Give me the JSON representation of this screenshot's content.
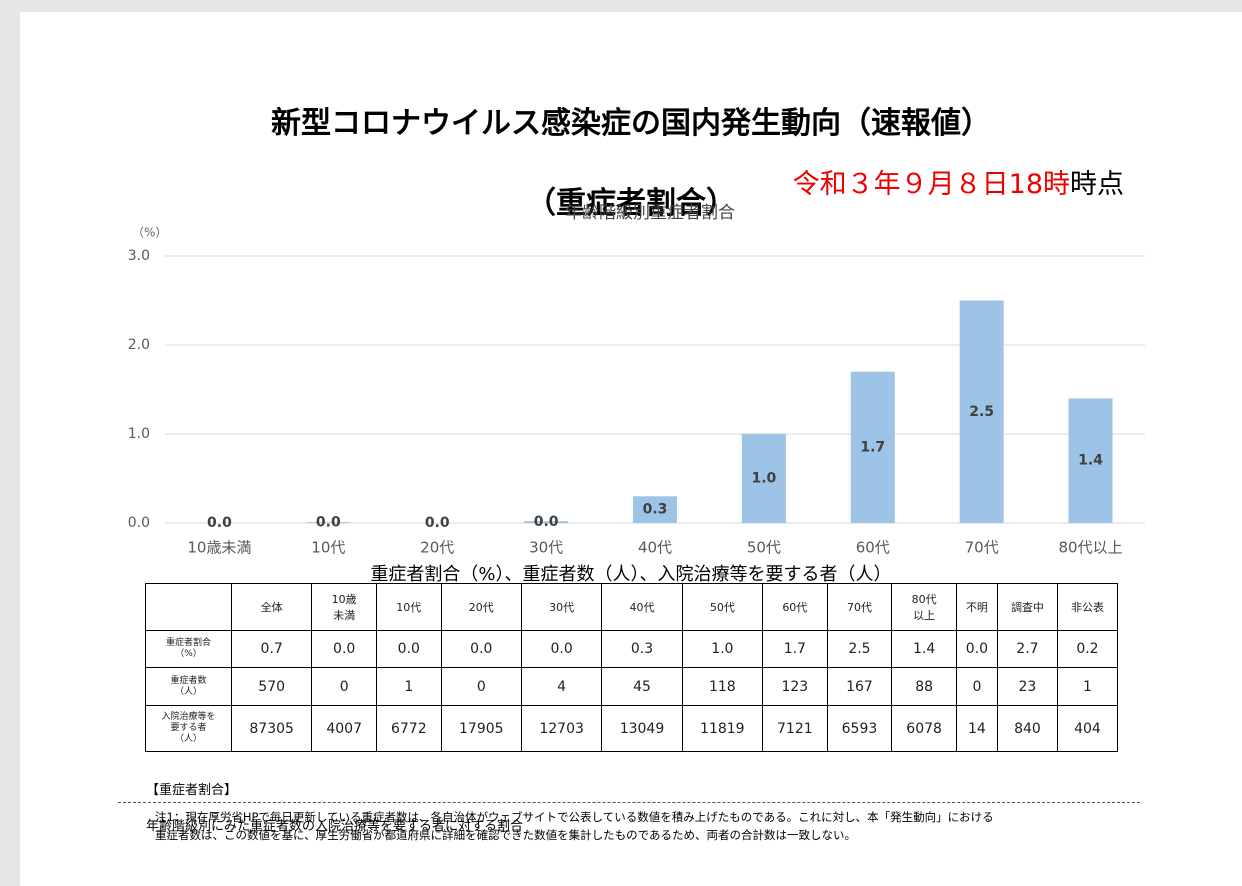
{
  "header": {
    "title_lines": [
      "新型コロナウイルス感染症の国内発生動向（速報値）",
      "（重症者割合）"
    ],
    "date": "令和３年９月８日18時",
    "date_suffix": "時点"
  },
  "chart_data": {
    "type": "bar",
    "title": "年齢階級別重症者割合",
    "y_unit": "（%）",
    "categories": [
      "10歳未満",
      "10代",
      "20代",
      "30代",
      "40代",
      "50代",
      "60代",
      "70代",
      "80代以上"
    ],
    "values": [
      0,
      0.01,
      0,
      0.02,
      0.3,
      1.0,
      1.7,
      2.5,
      1.4
    ],
    "value_labels": [
      "0.0",
      "0.0",
      "0.0",
      "0.0",
      "0.3",
      "1.0",
      "1.7",
      "2.5",
      "1.4"
    ],
    "color": "#9dc3e6",
    "ylim": [
      0,
      3
    ],
    "yticks": [
      {
        "value": 0,
        "label": "0.0"
      },
      {
        "value": 1,
        "label": "1.0"
      },
      {
        "value": 2,
        "label": "2.0"
      },
      {
        "value": 3,
        "label": "3.0"
      }
    ],
    "grid": true
  },
  "table": {
    "title": "重症者割合（%）、重症者数（人）、入院治療等を要する者（人）",
    "columns": [
      "全体",
      "10歳\n未満",
      "10代",
      "20代",
      "30代",
      "40代",
      "50代",
      "60代",
      "70代",
      "80代\n以上",
      "不明",
      "調査中",
      "非公表"
    ],
    "rows": [
      {
        "label": "重症者割合\n（%）",
        "cells": [
          "0.7",
          "0.0",
          "0.0",
          "0.0",
          "0.0",
          "0.3",
          "1.0",
          "1.7",
          "2.5",
          "1.4",
          "0.0",
          "2.7",
          "0.2"
        ]
      },
      {
        "label": "重症者数\n（人）",
        "cells": [
          "570",
          "0",
          "1",
          "0",
          "4",
          "45",
          "118",
          "123",
          "167",
          "88",
          "0",
          "23",
          "1"
        ]
      },
      {
        "label": "入院治療等を\n要する者\n（人）",
        "cells": [
          "87305",
          "4007",
          "6772",
          "17905",
          "12703",
          "13049",
          "11819",
          "7121",
          "6593",
          "6078",
          "14",
          "840",
          "404"
        ]
      }
    ]
  },
  "notes": {
    "definition_heading": "【重症者割合】",
    "definition": "年齢階級別にみた重症者数の入院治療等を要する者に対する割合",
    "note1": "注1：現在厚労省HPで毎日更新している重症者数は、各自治体がウェブサイトで公表している数値を積み上げたものである。これに対し、本「発生動向」における\n重症者数は、この数値を基に、厚生労働省が都道府県に詳細を確認できた数値を集計したものであるため、両者の合計数は一致しない。"
  }
}
